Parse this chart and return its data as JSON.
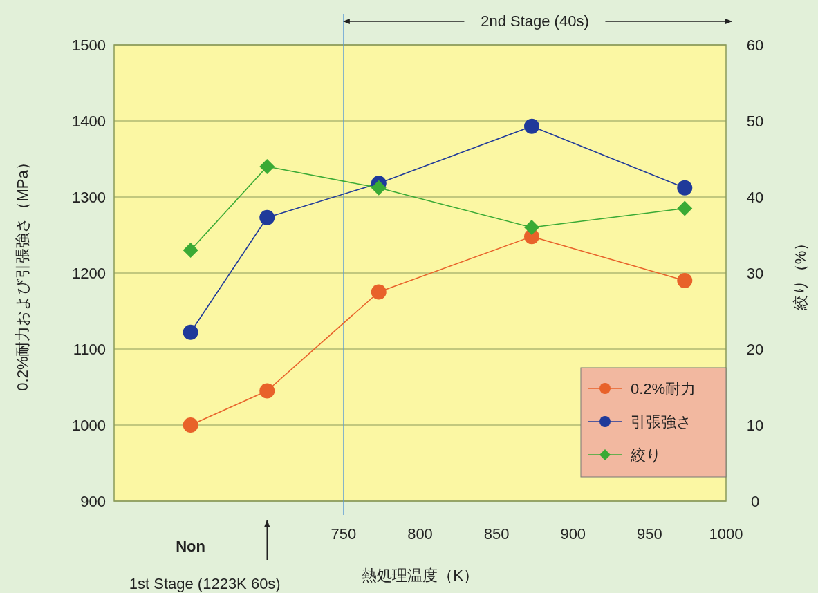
{
  "chart_data": {
    "type": "line",
    "xlabel": "熱処理温度（K）",
    "ylabel": "0.2%耐力および引張強さ（MPa）",
    "y2label": "絞り（%）",
    "x": [
      650,
      700,
      773,
      873,
      973
    ],
    "series": [
      {
        "name": "0.2%耐力",
        "color": "#e8622a",
        "marker": "circle",
        "values": [
          1000,
          1045,
          1175,
          1248,
          1190
        ]
      },
      {
        "name": "引張強さ",
        "color": "#1f3a9a",
        "marker": "circle",
        "values": [
          1122,
          1273,
          1318,
          1393,
          1312
        ]
      },
      {
        "name": "絞り",
        "color": "#3aaa35",
        "marker": "diamond",
        "axis": "y2",
        "values": [
          33,
          44,
          41.2,
          36,
          38.5
        ]
      }
    ],
    "xlim": [
      600,
      1000
    ],
    "xticks": [
      750,
      800,
      850,
      900,
      950,
      1000
    ],
    "ylim": [
      900,
      1500
    ],
    "yticks": [
      900,
      1000,
      1100,
      1200,
      1300,
      1400,
      1500
    ],
    "y2lim": [
      0,
      60
    ],
    "y2ticks": [
      0,
      10,
      20,
      30,
      40,
      50,
      60
    ],
    "grid": "y",
    "legend": "bottom right",
    "ref_lines": [
      {
        "axis": "x",
        "value": 750,
        "color": "#5b9bd5"
      }
    ],
    "annotations": [
      "Non",
      "1st Stage (1223K 60s)",
      "2nd Stage (40s)"
    ]
  }
}
